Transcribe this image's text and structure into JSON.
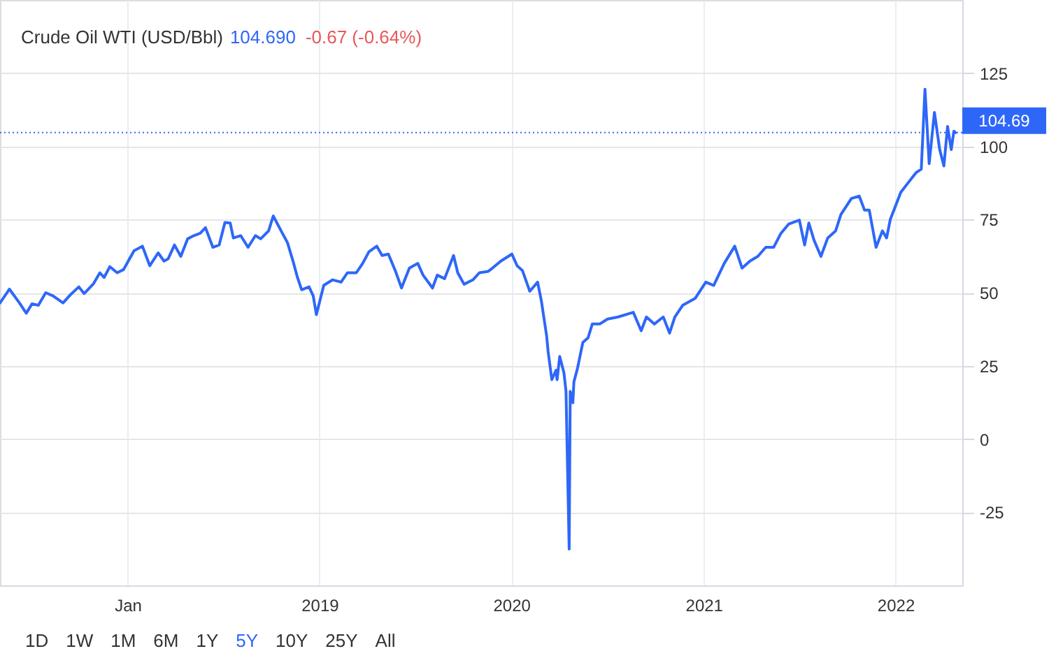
{
  "chart_data": {
    "type": "line",
    "title": "Crude Oil WTI (USD/Bbl)",
    "annotations": [
      "104.690",
      "-0.67 (-0.64%)",
      "1D",
      "1W",
      "1M",
      "6M",
      "1Y",
      "5Y",
      "10Y",
      "25Y",
      "All"
    ],
    "x": [
      "2017-05-03",
      "2017-05-21",
      "2017-06-09",
      "2017-06-22",
      "2017-07-03",
      "2017-07-15",
      "2017-07-29",
      "2017-08-12",
      "2017-08-31",
      "2017-09-14",
      "2017-09-30",
      "2017-10-10",
      "2017-10-28",
      "2017-11-09",
      "2017-11-17",
      "2017-11-28",
      "2017-12-12",
      "2017-12-24",
      "2018-01-13",
      "2018-01-29",
      "2018-02-12",
      "2018-02-28",
      "2018-03-11",
      "2018-03-19",
      "2018-03-31",
      "2018-04-12",
      "2018-04-25",
      "2018-05-07",
      "2018-05-19",
      "2018-05-29",
      "2018-06-12",
      "2018-06-24",
      "2018-07-05",
      "2018-07-15",
      "2018-07-21",
      "2018-08-04",
      "2018-08-18",
      "2018-09-01",
      "2018-09-11",
      "2018-09-26",
      "2018-10-05",
      "2018-10-20",
      "2018-11-01",
      "2018-11-12",
      "2018-11-20",
      "2018-11-28",
      "2018-12-12",
      "2018-12-20",
      "2018-12-26",
      "2019-01-09",
      "2019-01-26",
      "2019-02-11",
      "2019-02-23",
      "2019-03-12",
      "2019-03-24",
      "2019-04-05",
      "2019-04-20",
      "2019-04-30",
      "2019-05-12",
      "2019-05-25",
      "2019-06-06",
      "2019-06-21",
      "2019-07-07",
      "2019-07-17",
      "2019-08-04",
      "2019-08-13",
      "2019-08-27",
      "2019-09-13",
      "2019-09-21",
      "2019-10-03",
      "2019-10-20",
      "2019-11-01",
      "2019-11-18",
      "2019-11-26",
      "2019-12-12",
      "2020-01-02",
      "2020-01-12",
      "2020-01-22",
      "2020-02-05",
      "2020-02-20",
      "2020-02-27",
      "2020-03-08",
      "2020-03-11",
      "2020-03-18",
      "2020-03-26",
      "2020-03-28",
      "2020-04-02",
      "2020-04-10",
      "2020-04-14",
      "2020-04-20",
      "2020-04-22",
      "2020-04-27",
      "2020-04-29",
      "2020-05-06",
      "2020-05-16",
      "2020-05-26",
      "2020-06-03",
      "2020-06-17",
      "2020-07-02",
      "2020-07-22",
      "2020-08-20",
      "2020-09-04",
      "2020-09-14",
      "2020-09-29",
      "2020-10-16",
      "2020-10-28",
      "2020-11-07",
      "2020-11-22",
      "2020-12-16",
      "2021-01-05",
      "2021-01-20",
      "2021-02-09",
      "2021-03-01",
      "2021-03-15",
      "2021-03-30",
      "2021-04-14",
      "2021-04-29",
      "2021-05-14",
      "2021-05-28",
      "2021-06-12",
      "2021-07-02",
      "2021-07-12",
      "2021-07-20",
      "2021-07-30",
      "2021-08-12",
      "2021-08-25",
      "2021-09-09",
      "2021-09-19",
      "2021-10-09",
      "2021-10-24",
      "2021-11-03",
      "2021-11-12",
      "2021-11-25",
      "2021-12-07",
      "2021-12-15",
      "2021-12-22",
      "2022-01-11",
      "2022-01-26",
      "2022-02-09",
      "2022-02-19",
      "2022-02-26",
      "2022-03-06",
      "2022-03-16",
      "2022-03-26",
      "2022-04-03",
      "2022-04-10",
      "2022-04-17",
      "2022-04-22",
      "2022-04-25"
    ],
    "series": [
      {
        "color": "#2e67f8",
        "values": [
          46.5,
          51.2,
          46.5,
          43.0,
          46.2,
          45.7,
          50.0,
          48.9,
          46.5,
          49.3,
          52.0,
          49.7,
          53.1,
          56.8,
          55.2,
          58.9,
          56.8,
          57.9,
          64.3,
          65.9,
          59.2,
          63.6,
          60.8,
          61.6,
          66.3,
          62.4,
          68.4,
          69.5,
          70.3,
          72.2,
          65.5,
          66.3,
          74.0,
          73.8,
          68.7,
          69.5,
          65.5,
          69.5,
          68.4,
          71.1,
          76.2,
          71.1,
          67.1,
          60.5,
          55.2,
          51.0,
          52.0,
          48.9,
          42.5,
          52.5,
          54.4,
          53.6,
          56.8,
          56.8,
          60.0,
          64.0,
          65.9,
          62.7,
          63.2,
          57.6,
          51.6,
          58.4,
          60.0,
          56.0,
          51.6,
          56.0,
          54.8,
          62.7,
          56.8,
          52.9,
          54.4,
          56.8,
          57.3,
          58.4,
          60.8,
          63.2,
          59.2,
          57.6,
          50.5,
          53.6,
          47.3,
          35.4,
          29.8,
          20.3,
          23.5,
          20.3,
          28.2,
          22.7,
          16.3,
          -37.6,
          16.3,
          12.4,
          19.5,
          24.3,
          33.0,
          34.6,
          39.3,
          39.3,
          41.0,
          41.7,
          43.3,
          37.0,
          41.7,
          39.3,
          41.7,
          36.2,
          41.7,
          45.7,
          48.1,
          53.6,
          52.5,
          60.0,
          65.9,
          58.4,
          60.8,
          62.4,
          65.5,
          65.5,
          70.3,
          73.5,
          74.8,
          66.3,
          73.8,
          67.9,
          62.4,
          68.7,
          71.1,
          76.7,
          82.2,
          83.0,
          78.2,
          78.2,
          65.5,
          71.1,
          68.7,
          75.0,
          84.3,
          87.8,
          91.0,
          92.2,
          119.5,
          94.1,
          111.6,
          98.9,
          93.3,
          106.8,
          98.9,
          105.2,
          104.69
        ]
      }
    ],
    "xlim": [
      "2017-05-03",
      "2022-05-08"
    ],
    "xticks": [
      {
        "value": "2018",
        "label": "Jan"
      },
      "2019",
      "2020",
      "2021",
      "2022"
    ],
    "ylim": [
      -50,
      150
    ],
    "yticks": [
      -25,
      0,
      25,
      50,
      75,
      100,
      125
    ],
    "ref_lines": [
      {
        "axis": "y",
        "value": 104.69,
        "label": "104.69",
        "color": "#2e67f8",
        "line_style": "dotted"
      }
    ],
    "grid": true,
    "line_style": "solid"
  }
}
